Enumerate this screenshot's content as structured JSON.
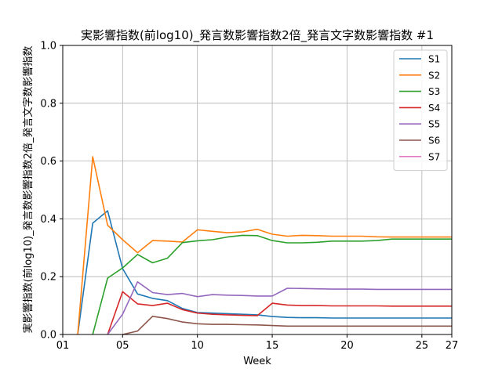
{
  "chart_data": {
    "type": "line",
    "title": "実影響指数(前log10)_発言数影響指数2倍_発言文字数影響指数 #1",
    "xlabel": "Week",
    "ylabel": "実影響指数(前log10)_発言数影響指数2倍_発言文字数影響指数",
    "xlim": [
      1,
      27
    ],
    "ylim": [
      0,
      1.0
    ],
    "x_ticks": [
      {
        "value": 1,
        "label": "01"
      },
      {
        "value": 5,
        "label": "05"
      },
      {
        "value": 10,
        "label": "10"
      },
      {
        "value": 15,
        "label": "15"
      },
      {
        "value": 20,
        "label": "20"
      },
      {
        "value": 25,
        "label": "25"
      },
      {
        "value": 27,
        "label": "27"
      }
    ],
    "y_ticks": [
      {
        "value": 0.0,
        "label": "0.0"
      },
      {
        "value": 0.2,
        "label": "0.2"
      },
      {
        "value": 0.4,
        "label": "0.4"
      },
      {
        "value": 0.6,
        "label": "0.6"
      },
      {
        "value": 0.8,
        "label": "0.8"
      },
      {
        "value": 1.0,
        "label": "1.0"
      }
    ],
    "grid": true,
    "legend_position": "top-right",
    "x": [
      2,
      3,
      4,
      5,
      6,
      7,
      8,
      9,
      10,
      11,
      12,
      13,
      14,
      15,
      16,
      17,
      18,
      19,
      20,
      21,
      22,
      23,
      24,
      25,
      26,
      27
    ],
    "series": [
      {
        "name": "S1",
        "color": "#1f77b4",
        "values": [
          0.0,
          0.385,
          0.428,
          0.228,
          0.14,
          0.125,
          0.117,
          0.09,
          0.076,
          0.074,
          0.072,
          0.07,
          0.068,
          0.062,
          0.059,
          0.058,
          0.058,
          0.057,
          0.057,
          0.057,
          0.057,
          0.057,
          0.057,
          0.057,
          0.057,
          0.057
        ]
      },
      {
        "name": "S2",
        "color": "#ff7f0e",
        "values": [
          0.0,
          0.615,
          0.378,
          0.328,
          0.283,
          0.325,
          0.323,
          0.32,
          0.362,
          0.357,
          0.352,
          0.355,
          0.364,
          0.347,
          0.34,
          0.343,
          0.342,
          0.34,
          0.34,
          0.34,
          0.338,
          0.337,
          0.337,
          0.337,
          0.337,
          0.337
        ]
      },
      {
        "name": "S3",
        "color": "#2ca02c",
        "values": [
          null,
          0.0,
          0.195,
          0.23,
          0.277,
          0.248,
          0.264,
          0.318,
          0.324,
          0.328,
          0.337,
          0.343,
          0.342,
          0.325,
          0.317,
          0.317,
          0.319,
          0.323,
          0.323,
          0.323,
          0.325,
          0.33,
          0.33,
          0.33,
          0.33,
          0.33
        ]
      },
      {
        "name": "S4",
        "color": "#d62728",
        "values": [
          null,
          null,
          0.0,
          0.148,
          0.106,
          0.1,
          0.108,
          0.086,
          0.074,
          0.07,
          0.068,
          0.066,
          0.065,
          0.108,
          0.102,
          0.1,
          0.1,
          0.099,
          0.099,
          0.099,
          0.099,
          0.098,
          0.098,
          0.098,
          0.098,
          0.098
        ]
      },
      {
        "name": "S5",
        "color": "#9467bd",
        "values": [
          null,
          null,
          0.0,
          0.07,
          0.182,
          0.145,
          0.138,
          0.142,
          0.131,
          0.138,
          0.136,
          0.135,
          0.133,
          0.133,
          0.16,
          0.159,
          0.158,
          0.157,
          0.157,
          0.157,
          0.156,
          0.156,
          0.156,
          0.156,
          0.156,
          0.156
        ]
      },
      {
        "name": "S6",
        "color": "#8c564b",
        "values": [
          null,
          null,
          null,
          0.0,
          0.012,
          0.063,
          0.055,
          0.043,
          0.037,
          0.035,
          0.035,
          0.034,
          0.033,
          0.031,
          0.029,
          0.029,
          0.029,
          0.029,
          0.029,
          0.029,
          0.029,
          0.029,
          0.029,
          0.029,
          0.029,
          0.029
        ]
      },
      {
        "name": "S7",
        "color": "#e377c2",
        "values": [
          null,
          null,
          null,
          null,
          null,
          null,
          null,
          null,
          null,
          null,
          null,
          null,
          null,
          null,
          null,
          null,
          null,
          null,
          null,
          null,
          null,
          null,
          null,
          null,
          null,
          null
        ]
      }
    ]
  }
}
